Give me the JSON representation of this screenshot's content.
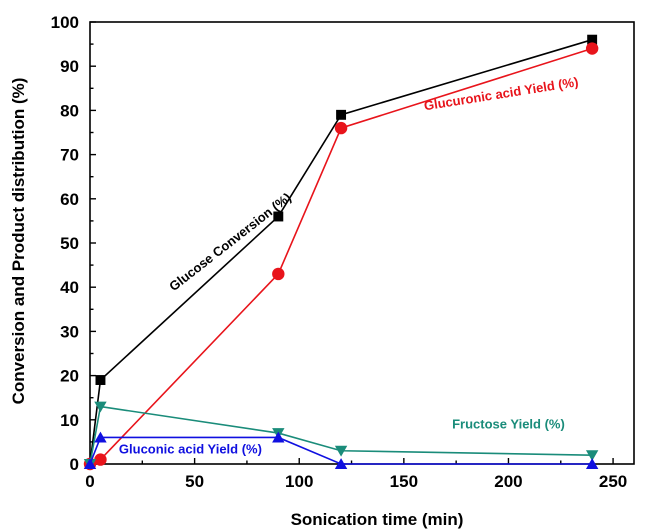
{
  "chart_data": {
    "type": "line",
    "xlabel": "Sonication time (min)",
    "ylabel": "Conversion and Product distribution (%)",
    "xlim": [
      0,
      260
    ],
    "ylim": [
      0,
      100
    ],
    "x_ticks": [
      0,
      50,
      100,
      150,
      200,
      250
    ],
    "y_ticks": [
      0,
      10,
      20,
      30,
      40,
      50,
      60,
      70,
      80,
      90,
      100
    ],
    "grid": false,
    "legend": "none",
    "series": [
      {
        "name": "Glucose Conversion (%)",
        "color": "#000000",
        "marker": "square",
        "x": [
          0,
          5,
          90,
          120,
          240
        ],
        "y": [
          0,
          19,
          56,
          79,
          96
        ]
      },
      {
        "name": "Glucuronic acid Yield (%)",
        "color": "#e8141b",
        "marker": "circle",
        "x": [
          0,
          5,
          90,
          120,
          240
        ],
        "y": [
          0,
          1,
          43,
          76,
          94
        ]
      },
      {
        "name": "Fructose Yield (%)",
        "color": "#1a8c7a",
        "marker": "triangle-down",
        "x": [
          0,
          5,
          90,
          120,
          240
        ],
        "y": [
          0,
          13,
          7,
          3,
          2
        ]
      },
      {
        "name": "Gluconic acid Yield (%)",
        "color": "#1010e0",
        "marker": "triangle-up",
        "x": [
          0,
          5,
          90,
          120,
          240
        ],
        "y": [
          0,
          6,
          6,
          0,
          0
        ]
      }
    ]
  }
}
